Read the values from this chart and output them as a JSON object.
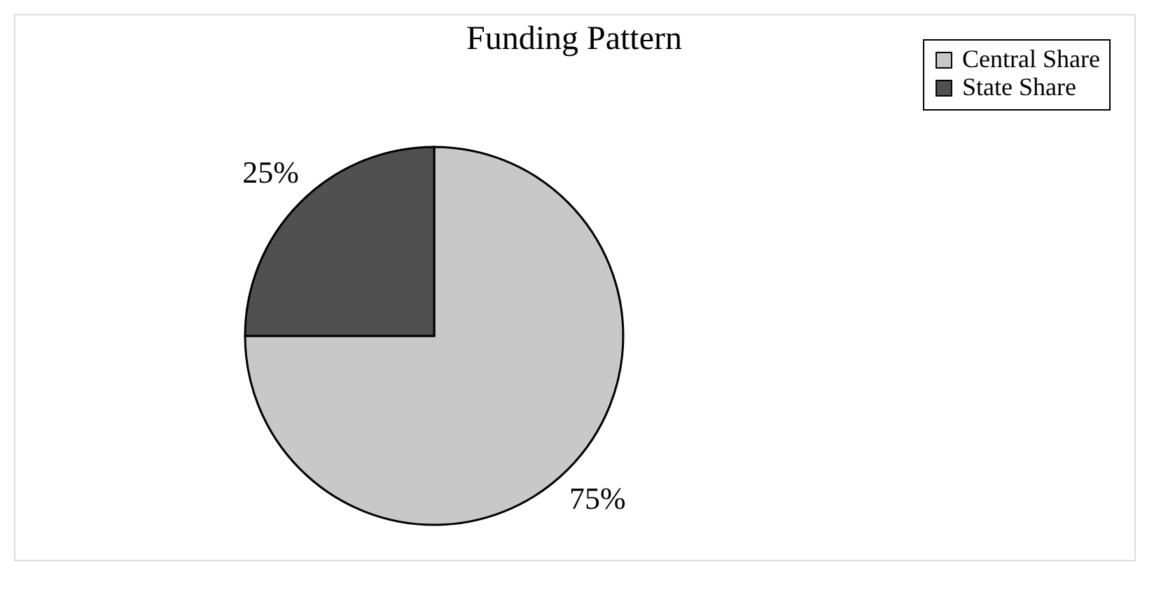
{
  "chart_data": {
    "type": "pie",
    "title": "Funding Pattern",
    "categories": [
      "Central Share",
      "State Share"
    ],
    "values": [
      75,
      25
    ],
    "colors": [
      "#c8c8c8",
      "#505050"
    ],
    "value_labels": [
      "75%",
      "25%"
    ],
    "legend": "top right"
  }
}
